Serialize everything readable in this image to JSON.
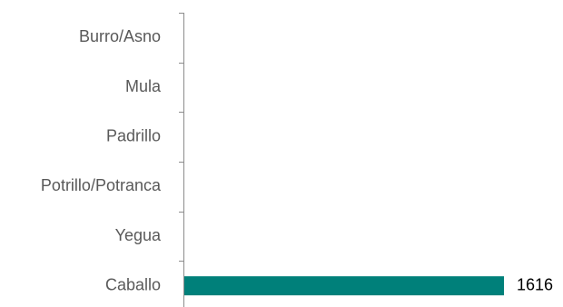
{
  "chart_data": {
    "type": "bar",
    "orientation": "horizontal",
    "categories": [
      "Burro/Asno",
      "Mula",
      "Padrillo",
      "Potrillo/Potranca",
      "Yegua",
      "Caballo"
    ],
    "values": [
      0,
      0,
      0,
      0,
      0,
      1616
    ],
    "data_labels": [
      "",
      "",
      "",
      "",
      "",
      "1616"
    ],
    "xlim": [
      0,
      1616
    ],
    "grid": false,
    "legend": "none",
    "bar_color": "#00807A",
    "axis_color": "#8c8c8c"
  }
}
